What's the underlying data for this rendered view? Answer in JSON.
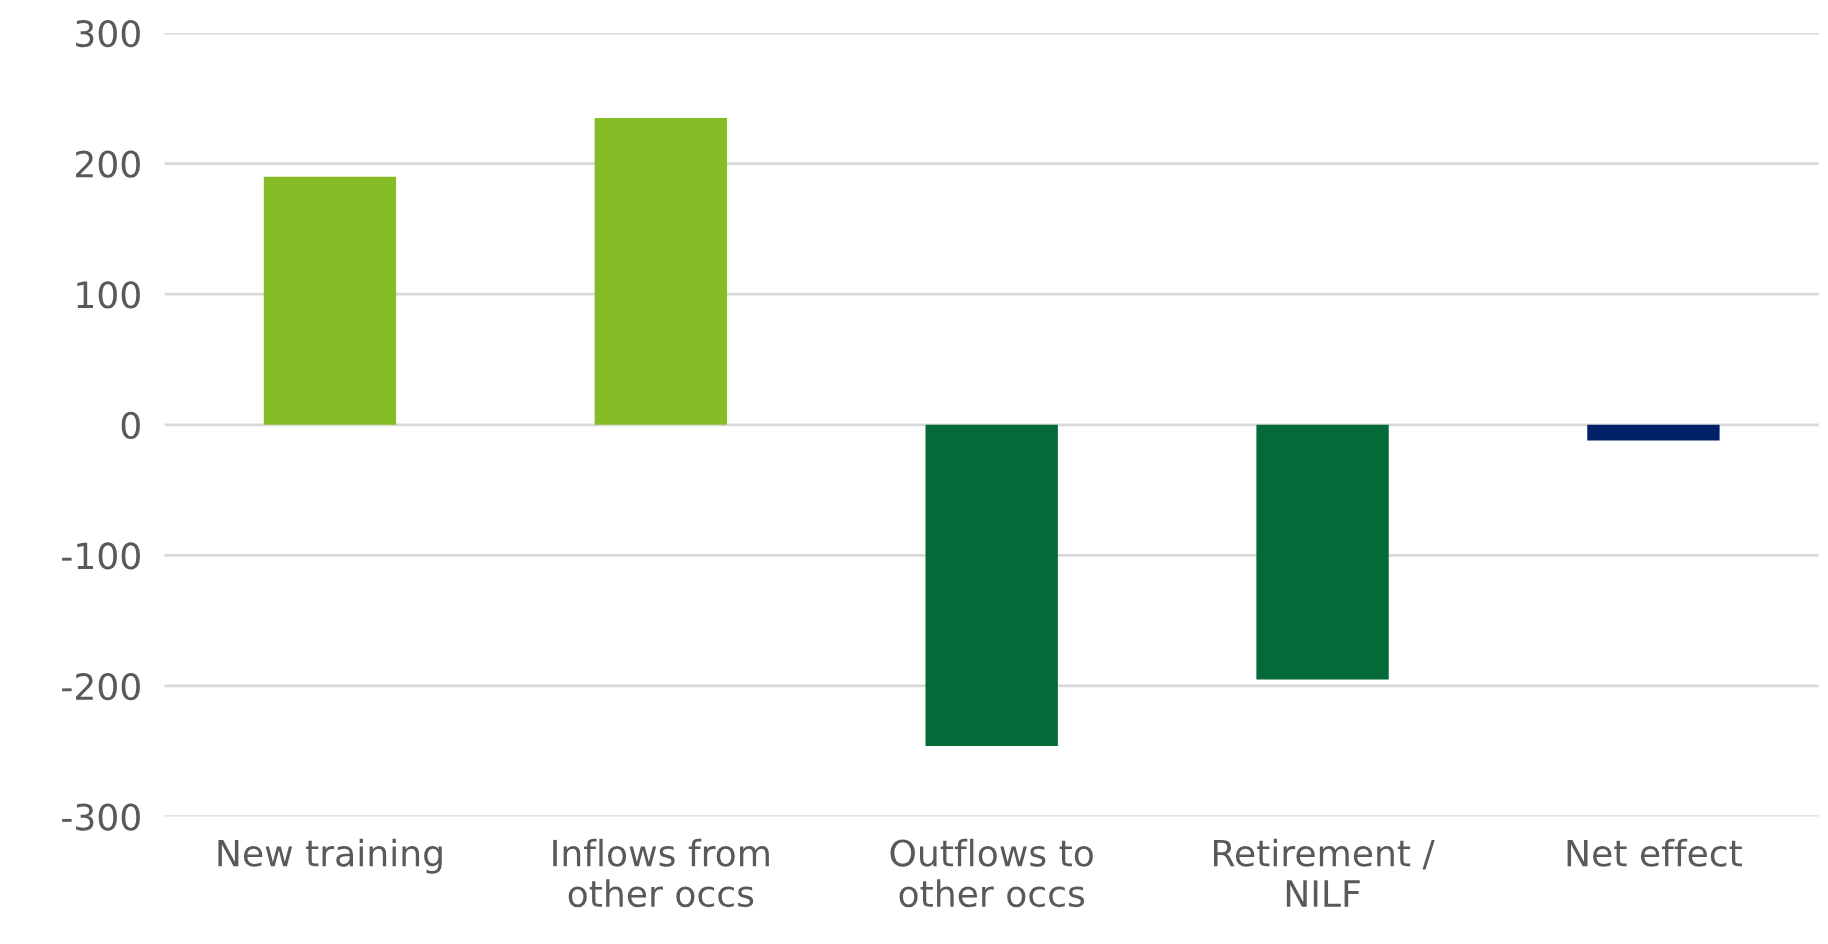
{
  "chart_data": {
    "type": "bar",
    "categories": [
      "New training",
      "Inflows from\nother occs",
      "Outflows to\nother occs",
      "Retirement /\nNILF",
      "Net effect"
    ],
    "values": [
      190,
      235,
      -246,
      -195,
      -12
    ],
    "colors": [
      "#86bc25",
      "#86bc25",
      "#046a38",
      "#046a38",
      "#012169"
    ],
    "ylim": [
      -300,
      300
    ],
    "yticks": [
      -300,
      -200,
      -100,
      0,
      100,
      200,
      300
    ],
    "grid": "y"
  }
}
